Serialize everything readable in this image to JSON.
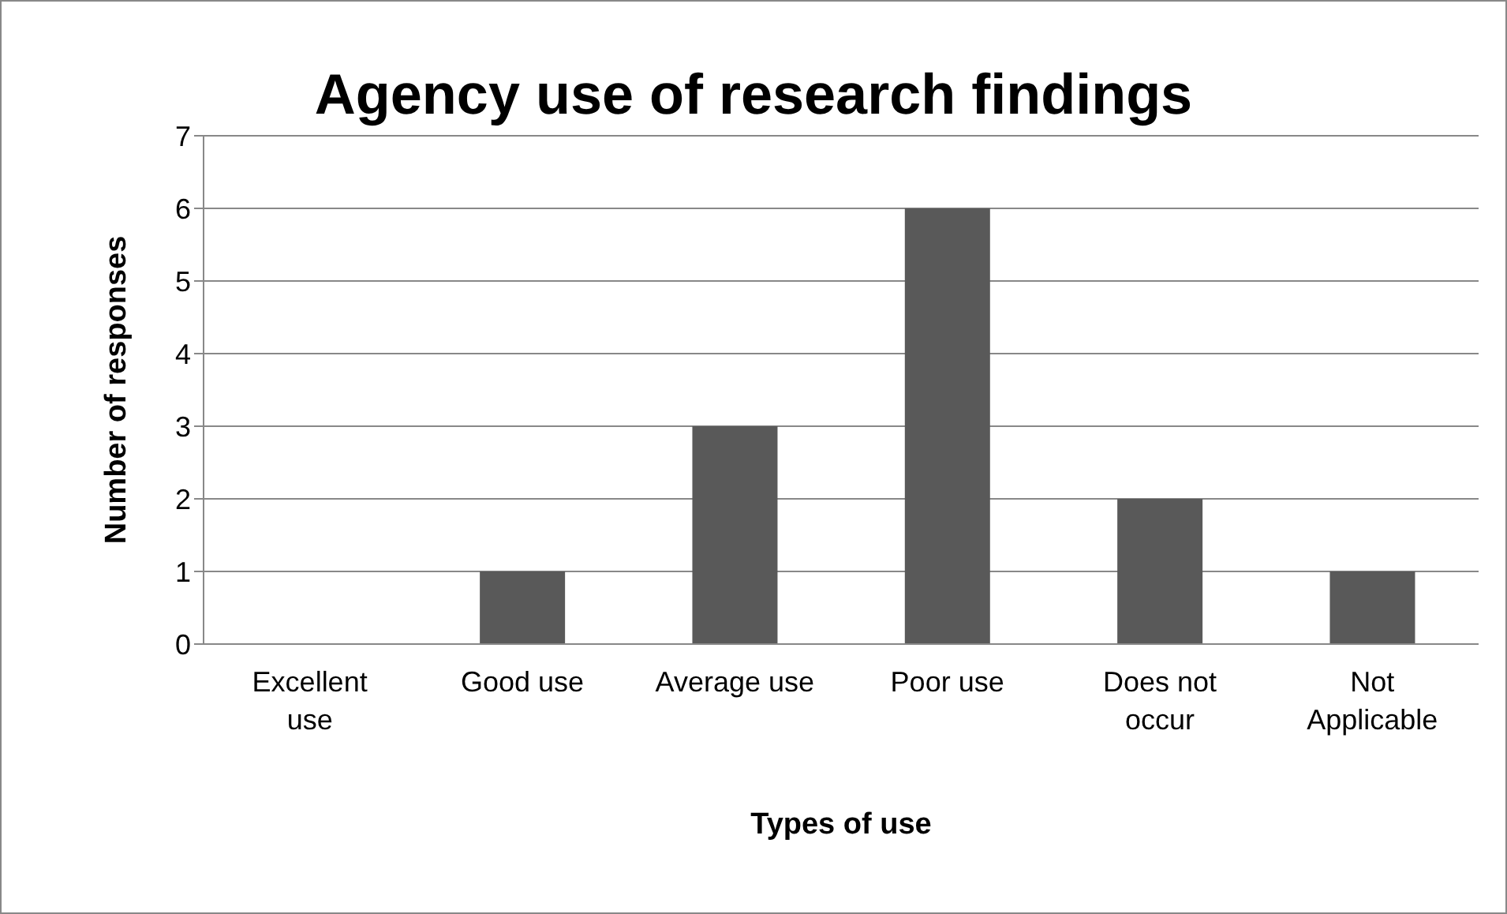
{
  "chart_data": {
    "type": "bar",
    "title": "Agency use of research findings",
    "xlabel": "Types of use",
    "ylabel": "Number of responses",
    "categories": [
      "Excellent use",
      "Good use",
      "Average use",
      "Poor use",
      "Does not occur",
      "Not Applicable"
    ],
    "values": [
      0,
      1,
      3,
      6,
      2,
      1
    ],
    "color": "#595959",
    "ylim": [
      0,
      7
    ],
    "yticks": [
      0,
      1,
      2,
      3,
      4,
      5,
      6,
      7
    ],
    "grid": "y"
  }
}
